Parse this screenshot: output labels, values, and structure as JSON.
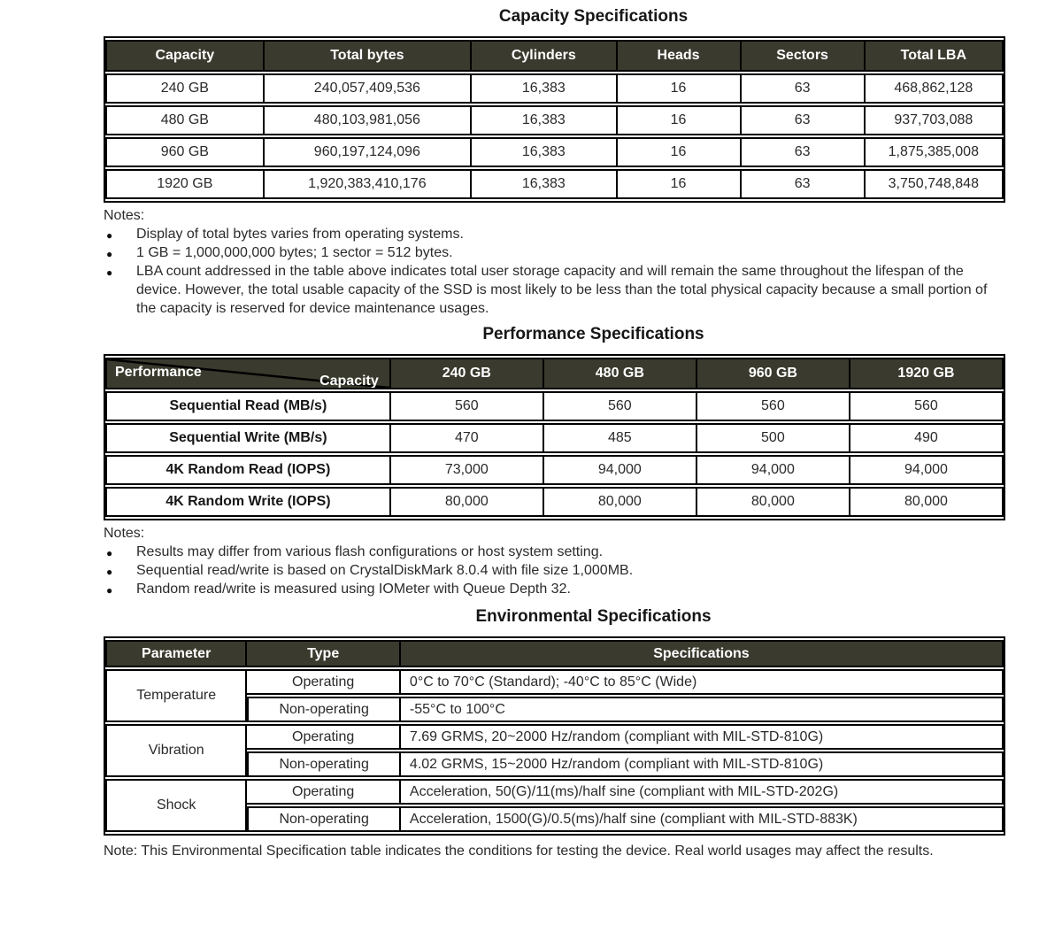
{
  "colors": {
    "header_bg": "#3a3a2e",
    "header_text": "#ffffff",
    "border": "#000000",
    "body_text": "#2b2b2b"
  },
  "capacity": {
    "title": "Capacity Specifications",
    "headers": [
      "Capacity",
      "Total bytes",
      "Cylinders",
      "Heads",
      "Sectors",
      "Total LBA"
    ],
    "rows": [
      [
        "240 GB",
        "240,057,409,536",
        "16,383",
        "16",
        "63",
        "468,862,128"
      ],
      [
        "480 GB",
        "480,103,981,056",
        "16,383",
        "16",
        "63",
        "937,703,088"
      ],
      [
        "960 GB",
        "960,197,124,096",
        "16,383",
        "16",
        "63",
        "1,875,385,008"
      ],
      [
        "1920 GB",
        "1,920,383,410,176",
        "16,383",
        "16",
        "63",
        "3,750,748,848"
      ]
    ],
    "notes_label": "Notes:",
    "notes": [
      "Display of total bytes varies from operating systems.",
      "1 GB = 1,000,000,000 bytes; 1 sector = 512 bytes.",
      "LBA count addressed in the table above indicates total user storage capacity and will remain the same throughout the lifespan of the device. However, the total usable capacity of the SSD is most likely to be less than the total physical capacity because a small portion of the capacity is reserved for device maintenance usages."
    ]
  },
  "performance": {
    "title": "Performance Specifications",
    "corner": {
      "top_label": "Capacity",
      "bottom_label": "Performance"
    },
    "columns": [
      "240 GB",
      "480 GB",
      "960 GB",
      "1920 GB"
    ],
    "rows": [
      {
        "label": "Sequential Read (MB/s)",
        "values": [
          "560",
          "560",
          "560",
          "560"
        ]
      },
      {
        "label": "Sequential Write (MB/s)",
        "values": [
          "470",
          "485",
          "500",
          "490"
        ]
      },
      {
        "label": "4K Random Read (IOPS)",
        "values": [
          "73,000",
          "94,000",
          "94,000",
          "94,000"
        ]
      },
      {
        "label": "4K Random Write (IOPS)",
        "values": [
          "80,000",
          "80,000",
          "80,000",
          "80,000"
        ]
      }
    ],
    "notes_label": "Notes:",
    "notes": [
      "Results may differ from various flash configurations or host system setting.",
      "Sequential read/write is based on CrystalDiskMark 8.0.4 with file size 1,000MB.",
      "Random read/write is measured using IOMeter with Queue Depth 32."
    ]
  },
  "environmental": {
    "title": "Environmental Specifications",
    "headers": [
      "Parameter",
      "Type",
      "Specifications"
    ],
    "groups": [
      {
        "param": "Temperature",
        "rows": [
          {
            "type": "Operating",
            "spec": "0°C to 70°C (Standard); -40°C to 85°C (Wide)"
          },
          {
            "type": "Non-operating",
            "spec": "-55°C to 100°C"
          }
        ]
      },
      {
        "param": "Vibration",
        "rows": [
          {
            "type": "Operating",
            "spec": "7.69 GRMS, 20~2000 Hz/random (compliant with MIL-STD-810G)"
          },
          {
            "type": "Non-operating",
            "spec": "4.02 GRMS, 15~2000 Hz/random (compliant with MIL-STD-810G)"
          }
        ]
      },
      {
        "param": "Shock",
        "rows": [
          {
            "type": "Operating",
            "spec": "Acceleration, 50(G)/11(ms)/half sine (compliant with MIL-STD-202G)"
          },
          {
            "type": "Non-operating",
            "spec": "Acceleration, 1500(G)/0.5(ms)/half sine (compliant with MIL-STD-883K)"
          }
        ]
      }
    ],
    "footnote": "Note: This Environmental Specification table indicates the conditions for testing the device. Real world usages may affect the results."
  }
}
